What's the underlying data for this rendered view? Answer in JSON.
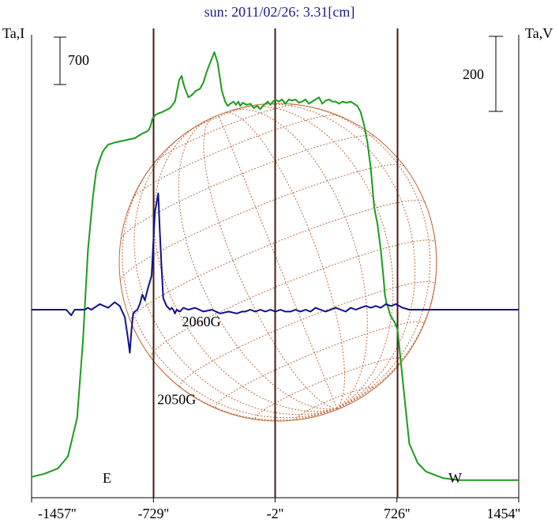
{
  "chart_data": {
    "type": "line",
    "title": "sun: 2011/02/26: 3.31[cm]",
    "left_axis_label": "Ta,I",
    "right_axis_label": "Ta,V",
    "left_scale_bar": "700",
    "right_scale_bar": "200",
    "x_ticks": [
      {
        "value": -1457,
        "label": "-1457''"
      },
      {
        "value": -729,
        "label": "-729''"
      },
      {
        "value": -2,
        "label": "-2''"
      },
      {
        "value": 726,
        "label": "726''"
      },
      {
        "value": 1454,
        "label": "1454''"
      }
    ],
    "xlim": [
      -1457,
      1454
    ],
    "ylim_I": [
      0,
      2020
    ],
    "ylim_V": [
      -360,
      360
    ],
    "vertical_lines": [
      -730,
      -2,
      726
    ],
    "limb_labels": [
      "E",
      "W"
    ],
    "annotations": [
      {
        "text": "2060G",
        "x": -442,
        "y": -44
      },
      {
        "text": "2050G",
        "x": -590,
        "y": -252
      }
    ],
    "colors": {
      "I": "#1c9c1c",
      "V": "#10108c",
      "grid": "#c06a3a",
      "vlines": "#4a1a10",
      "title": "#1c1c8c"
    },
    "series": [
      {
        "name": "I",
        "x": [
          -1457,
          -1380,
          -1300,
          -1240,
          -1185,
          -1150,
          -1120,
          -1090,
          -1070,
          -1050,
          -1030,
          -1000,
          -960,
          -900,
          -840,
          -800,
          -770,
          -755,
          -745,
          -735,
          -725,
          -715,
          -700,
          -680,
          -655,
          -630,
          -600,
          -575,
          -560,
          -552,
          -540,
          -520,
          -500,
          -475,
          -450,
          -430,
          -410,
          -385,
          -365,
          -345,
          -320,
          -300,
          -285,
          -270,
          -260,
          -250,
          -236,
          -222,
          -210,
          -196,
          -170,
          -150,
          -130,
          -110,
          -90,
          -75,
          -60,
          -45,
          -30,
          -15,
          0,
          20,
          40,
          60,
          80,
          100,
          120,
          140,
          160,
          180,
          200,
          220,
          240,
          260,
          280,
          300,
          320,
          340,
          360,
          380,
          400,
          425,
          450,
          470,
          490,
          510,
          530,
          550,
          570,
          590,
          610,
          630,
          645,
          655,
          665,
          675,
          685,
          700,
          715,
          730,
          760,
          800,
          850,
          900,
          1000,
          1100,
          1200,
          1300,
          1400,
          1454
        ],
        "values": [
          45,
          60,
          85,
          140,
          320,
          680,
          1100,
          1350,
          1470,
          1520,
          1560,
          1590,
          1600,
          1610,
          1620,
          1640,
          1650,
          1660,
          1680,
          1710,
          1720,
          1730,
          1735,
          1740,
          1750,
          1760,
          1790,
          1890,
          1910,
          1880,
          1850,
          1810,
          1820,
          1840,
          1850,
          1880,
          1930,
          1980,
          2020,
          1970,
          1840,
          1790,
          1770,
          1780,
          1785,
          1790,
          1775,
          1790,
          1770,
          1785,
          1775,
          1780,
          1760,
          1770,
          1755,
          1770,
          1780,
          1790,
          1775,
          1790,
          1800,
          1790,
          1800,
          1780,
          1800,
          1795,
          1800,
          1785,
          1790,
          1800,
          1780,
          1790,
          1800,
          1810,
          1780,
          1795,
          1800,
          1790,
          1790,
          1780,
          1790,
          1785,
          1790,
          1780,
          1770,
          1740,
          1680,
          1600,
          1480,
          1300,
          1220,
          1100,
          980,
          890,
          850,
          830,
          800,
          780,
          760,
          730,
          500,
          200,
          110,
          70,
          40,
          30,
          30,
          30,
          30,
          30
        ]
      },
      {
        "name": "V",
        "x": [
          -1457,
          -1350,
          -1250,
          -1220,
          -1200,
          -1180,
          -1160,
          -1140,
          -1120,
          -1100,
          -1050,
          -1000,
          -960,
          -930,
          -900,
          -880,
          -870,
          -860,
          -850,
          -840,
          -825,
          -810,
          -795,
          -780,
          -760,
          -740,
          -720,
          -700,
          -690,
          -680,
          -670,
          -660,
          -650,
          -640,
          -630,
          -620,
          -610,
          -600,
          -590,
          -570,
          -550,
          -520,
          -480,
          -430,
          -380,
          -330,
          -280,
          -230,
          -200,
          -180,
          -150,
          -120,
          -90,
          -60,
          -30,
          0,
          30,
          60,
          90,
          120,
          150,
          180,
          210,
          240,
          270,
          300,
          330,
          360,
          390,
          420,
          450,
          480,
          510,
          540,
          570,
          600,
          630,
          660,
          690,
          720,
          740,
          760,
          800,
          900,
          1000,
          1100,
          1200,
          1300,
          1400,
          1454
        ],
        "values": [
          0,
          0,
          0,
          -15,
          0,
          0,
          0,
          0,
          5,
          0,
          15,
          5,
          20,
          10,
          -20,
          -80,
          -115,
          -55,
          -10,
          -5,
          0,
          15,
          40,
          25,
          60,
          90,
          260,
          310,
          200,
          110,
          30,
          20,
          10,
          5,
          0,
          5,
          0,
          -10,
          0,
          -5,
          5,
          0,
          5,
          -5,
          0,
          -10,
          -5,
          -10,
          -5,
          -5,
          0,
          -5,
          0,
          -5,
          0,
          -5,
          0,
          -5,
          -5,
          0,
          -5,
          0,
          -5,
          5,
          0,
          -5,
          0,
          5,
          0,
          -5,
          5,
          0,
          5,
          10,
          5,
          10,
          5,
          15,
          10,
          15,
          10,
          5,
          0,
          0,
          0,
          0,
          0,
          0,
          0,
          0
        ]
      }
    ]
  }
}
